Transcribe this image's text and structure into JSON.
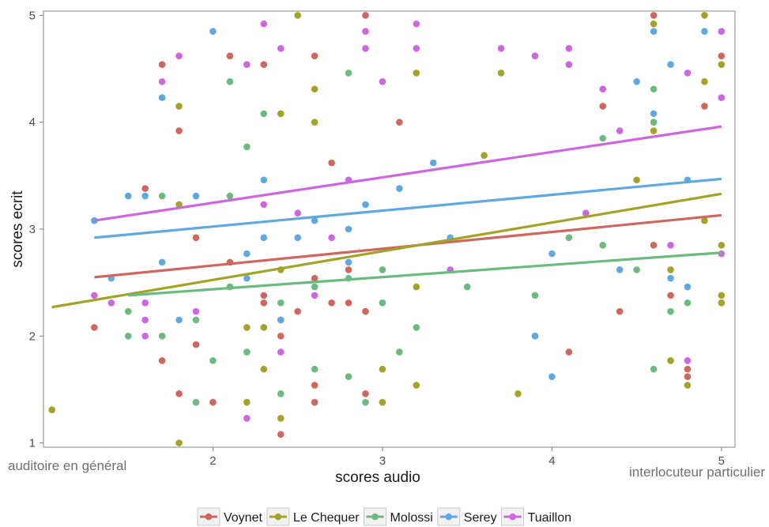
{
  "chart_data": {
    "type": "scatter",
    "xlabel": "scores audio",
    "ylabel": "scores ecrit",
    "xlim": [
      1.0,
      5.08
    ],
    "ylim": [
      0.96,
      5.04
    ],
    "xticks": [
      2,
      3,
      4,
      5
    ],
    "yticks": [
      1,
      2,
      3,
      4,
      5
    ],
    "grid": false,
    "legend_position": "bottom",
    "annotations": {
      "left": "auditoire en général",
      "right": "interlocuteur particulier"
    },
    "series": [
      {
        "name": "Voynet",
        "color": "#d0675f",
        "fit": {
          "x": [
            1.3,
            5.0
          ],
          "y": [
            2.55,
            3.13
          ]
        },
        "points": [
          [
            1.3,
            2.08
          ],
          [
            1.6,
            3.38
          ],
          [
            1.7,
            4.54
          ],
          [
            1.7,
            1.77
          ],
          [
            1.8,
            3.92
          ],
          [
            1.8,
            1.46
          ],
          [
            1.9,
            2.92
          ],
          [
            1.9,
            1.92
          ],
          [
            2.0,
            1.38
          ],
          [
            2.1,
            4.62
          ],
          [
            2.1,
            2.69
          ],
          [
            2.3,
            4.54
          ],
          [
            2.3,
            2.38
          ],
          [
            2.3,
            2.31
          ],
          [
            2.4,
            2.15
          ],
          [
            2.4,
            2.0
          ],
          [
            2.4,
            1.08
          ],
          [
            2.5,
            2.23
          ],
          [
            2.6,
            4.62
          ],
          [
            2.6,
            2.54
          ],
          [
            2.6,
            1.54
          ],
          [
            2.6,
            1.38
          ],
          [
            2.7,
            3.62
          ],
          [
            2.7,
            2.31
          ],
          [
            2.8,
            2.62
          ],
          [
            2.8,
            2.31
          ],
          [
            2.9,
            5.0
          ],
          [
            2.9,
            2.23
          ],
          [
            2.9,
            1.46
          ],
          [
            3.1,
            4.0
          ],
          [
            4.1,
            1.85
          ],
          [
            4.3,
            4.15
          ],
          [
            4.4,
            2.23
          ],
          [
            4.6,
            5.0
          ],
          [
            4.6,
            2.85
          ],
          [
            4.7,
            2.38
          ],
          [
            4.8,
            1.69
          ],
          [
            4.8,
            1.62
          ],
          [
            4.9,
            4.15
          ],
          [
            5.0,
            4.62
          ]
        ]
      },
      {
        "name": "Le Chequer",
        "color": "#a3a327",
        "fit": {
          "x": [
            1.05,
            5.0
          ],
          "y": [
            2.27,
            3.33
          ]
        },
        "points": [
          [
            1.05,
            1.31
          ],
          [
            1.8,
            4.15
          ],
          [
            1.8,
            3.23
          ],
          [
            1.8,
            1.0
          ],
          [
            2.2,
            2.08
          ],
          [
            2.2,
            1.38
          ],
          [
            2.3,
            2.08
          ],
          [
            2.3,
            1.69
          ],
          [
            2.4,
            4.08
          ],
          [
            2.4,
            2.62
          ],
          [
            2.4,
            1.23
          ],
          [
            2.5,
            5.0
          ],
          [
            2.6,
            4.31
          ],
          [
            2.6,
            4.0
          ],
          [
            3.0,
            1.69
          ],
          [
            3.0,
            1.38
          ],
          [
            3.2,
            4.46
          ],
          [
            3.2,
            2.46
          ],
          [
            3.2,
            1.54
          ],
          [
            3.6,
            3.69
          ],
          [
            3.7,
            4.46
          ],
          [
            3.8,
            1.46
          ],
          [
            4.5,
            3.46
          ],
          [
            4.6,
            4.92
          ],
          [
            4.6,
            3.92
          ],
          [
            4.7,
            2.62
          ],
          [
            4.7,
            1.77
          ],
          [
            4.8,
            1.54
          ],
          [
            4.9,
            5.0
          ],
          [
            4.9,
            4.38
          ],
          [
            4.9,
            3.08
          ],
          [
            5.0,
            4.54
          ],
          [
            5.0,
            2.85
          ],
          [
            5.0,
            2.38
          ],
          [
            5.0,
            2.31
          ]
        ]
      },
      {
        "name": "Molossi",
        "color": "#6bbb7f",
        "fit": {
          "x": [
            1.5,
            5.0
          ],
          "y": [
            2.38,
            2.78
          ]
        },
        "points": [
          [
            1.5,
            2.23
          ],
          [
            1.5,
            2.0
          ],
          [
            1.7,
            3.31
          ],
          [
            1.7,
            2.0
          ],
          [
            1.9,
            2.15
          ],
          [
            1.9,
            1.38
          ],
          [
            2.0,
            1.77
          ],
          [
            2.1,
            4.38
          ],
          [
            2.1,
            3.31
          ],
          [
            2.1,
            2.46
          ],
          [
            2.2,
            3.77
          ],
          [
            2.2,
            1.85
          ],
          [
            2.3,
            4.08
          ],
          [
            2.4,
            2.31
          ],
          [
            2.4,
            1.46
          ],
          [
            2.6,
            2.46
          ],
          [
            2.6,
            1.69
          ],
          [
            2.8,
            4.46
          ],
          [
            2.8,
            2.54
          ],
          [
            2.8,
            1.62
          ],
          [
            2.9,
            1.38
          ],
          [
            3.0,
            2.62
          ],
          [
            3.0,
            2.31
          ],
          [
            3.1,
            1.85
          ],
          [
            3.2,
            2.08
          ],
          [
            3.5,
            2.46
          ],
          [
            3.9,
            2.38
          ],
          [
            4.1,
            2.92
          ],
          [
            4.3,
            3.85
          ],
          [
            4.3,
            2.85
          ],
          [
            4.5,
            2.62
          ],
          [
            4.6,
            4.31
          ],
          [
            4.6,
            4.0
          ],
          [
            4.6,
            1.69
          ],
          [
            4.7,
            2.23
          ],
          [
            4.8,
            2.31
          ]
        ]
      },
      {
        "name": "Serey",
        "color": "#5fa9e0",
        "fit": {
          "x": [
            1.3,
            5.0
          ],
          "y": [
            2.92,
            3.47
          ]
        },
        "points": [
          [
            1.3,
            3.08
          ],
          [
            1.4,
            2.54
          ],
          [
            1.5,
            3.31
          ],
          [
            1.6,
            3.31
          ],
          [
            1.7,
            4.23
          ],
          [
            1.7,
            2.69
          ],
          [
            1.8,
            2.15
          ],
          [
            1.9,
            3.31
          ],
          [
            2.0,
            4.85
          ],
          [
            2.2,
            2.77
          ],
          [
            2.2,
            2.54
          ],
          [
            2.3,
            3.46
          ],
          [
            2.3,
            2.92
          ],
          [
            2.4,
            2.15
          ],
          [
            2.5,
            2.92
          ],
          [
            2.6,
            3.08
          ],
          [
            2.8,
            3.0
          ],
          [
            2.8,
            2.69
          ],
          [
            2.9,
            3.23
          ],
          [
            3.1,
            3.38
          ],
          [
            3.3,
            3.62
          ],
          [
            3.4,
            2.92
          ],
          [
            3.9,
            2.0
          ],
          [
            4.0,
            2.77
          ],
          [
            4.0,
            1.62
          ],
          [
            4.4,
            2.62
          ],
          [
            4.5,
            4.38
          ],
          [
            4.6,
            4.85
          ],
          [
            4.6,
            4.08
          ],
          [
            4.7,
            4.54
          ],
          [
            4.7,
            2.54
          ],
          [
            4.8,
            3.46
          ],
          [
            4.8,
            2.46
          ],
          [
            4.9,
            4.85
          ]
        ]
      },
      {
        "name": "Tuaillon",
        "color": "#cc67e0",
        "fit": {
          "x": [
            1.3,
            5.0
          ],
          "y": [
            3.08,
            3.96
          ]
        },
        "points": [
          [
            1.3,
            2.38
          ],
          [
            1.4,
            2.31
          ],
          [
            1.6,
            2.31
          ],
          [
            1.6,
            2.15
          ],
          [
            1.6,
            2.0
          ],
          [
            1.7,
            4.38
          ],
          [
            1.8,
            4.62
          ],
          [
            1.9,
            2.23
          ],
          [
            2.2,
            4.54
          ],
          [
            2.2,
            1.23
          ],
          [
            2.3,
            4.92
          ],
          [
            2.3,
            3.23
          ],
          [
            2.4,
            4.69
          ],
          [
            2.4,
            1.85
          ],
          [
            2.5,
            3.15
          ],
          [
            2.6,
            2.38
          ],
          [
            2.7,
            2.92
          ],
          [
            2.8,
            3.46
          ],
          [
            2.9,
            4.85
          ],
          [
            2.9,
            4.69
          ],
          [
            3.0,
            4.38
          ],
          [
            3.2,
            4.92
          ],
          [
            3.2,
            4.69
          ],
          [
            3.4,
            2.62
          ],
          [
            3.7,
            4.69
          ],
          [
            3.9,
            4.62
          ],
          [
            4.1,
            4.69
          ],
          [
            4.1,
            4.54
          ],
          [
            4.2,
            3.15
          ],
          [
            4.3,
            4.31
          ],
          [
            4.4,
            3.92
          ],
          [
            4.7,
            2.85
          ],
          [
            4.8,
            4.46
          ],
          [
            4.8,
            1.77
          ],
          [
            5.0,
            4.85
          ],
          [
            5.0,
            4.23
          ],
          [
            5.0,
            2.77
          ]
        ]
      }
    ]
  }
}
